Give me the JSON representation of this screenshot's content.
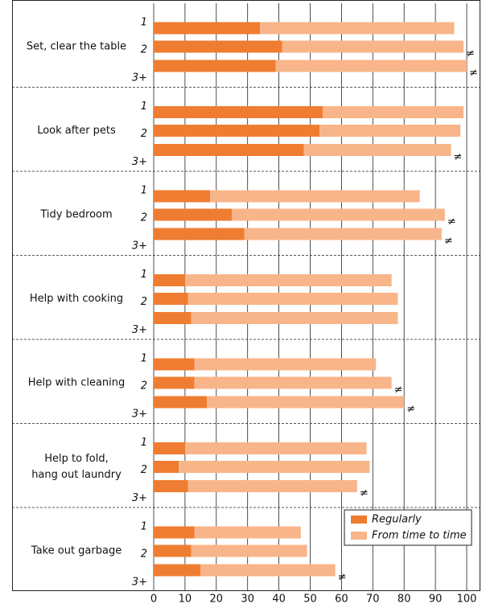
{
  "chart_data": {
    "type": "bar",
    "orientation": "horizontal",
    "stacked": true,
    "groups": [
      [
        "Set, clear the table"
      ],
      [
        "Look after pets"
      ],
      [
        "Tidy bedroom"
      ],
      [
        "Help with cooking"
      ],
      [
        "Help with cleaning"
      ],
      [
        "Help to fold,",
        "hang out laundry"
      ],
      [
        "Take out garbage"
      ]
    ],
    "rows": [
      "1",
      "2",
      "3+"
    ],
    "series": [
      {
        "name": "Regularly",
        "color": "#ef7d31",
        "values": [
          [
            34,
            41,
            39
          ],
          [
            54,
            53,
            48
          ],
          [
            18,
            25,
            29
          ],
          [
            10,
            11,
            12
          ],
          [
            13,
            13,
            17
          ],
          [
            10,
            8,
            11
          ],
          [
            13,
            12,
            15
          ]
        ]
      },
      {
        "name": "From time to time",
        "color": "#f8b58a",
        "values": [
          [
            62,
            58,
            61
          ],
          [
            45,
            45,
            47
          ],
          [
            67,
            68,
            63
          ],
          [
            66,
            67,
            66
          ],
          [
            58,
            63,
            63
          ],
          [
            58,
            61,
            54
          ],
          [
            34,
            37,
            43
          ]
        ]
      }
    ],
    "markers": [
      [
        null,
        "≠",
        "≠"
      ],
      [
        null,
        null,
        "≠"
      ],
      [
        null,
        "≠",
        "≠"
      ],
      [
        null,
        null,
        null
      ],
      [
        null,
        "≠",
        "≠"
      ],
      [
        null,
        null,
        "≠"
      ],
      [
        null,
        null,
        "≠"
      ]
    ],
    "xlim": [
      0,
      100
    ],
    "xticks": [
      0,
      10,
      20,
      30,
      40,
      50,
      60,
      70,
      80,
      90,
      100
    ],
    "grid": true,
    "legend": "lower right"
  }
}
